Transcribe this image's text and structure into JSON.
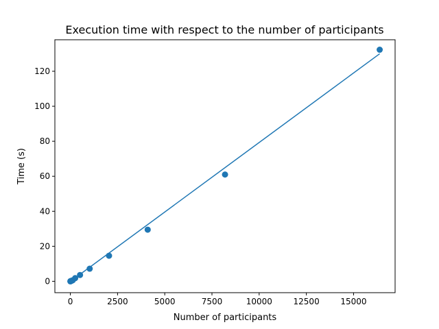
{
  "chart_data": {
    "type": "scatter",
    "title": "Execution time with respect to the number of participants",
    "xlabel": "Number of participants",
    "ylabel": "Time (s)",
    "xlim": [
      -820,
      17200
    ],
    "ylim": [
      -6.5,
      138
    ],
    "xticks": [
      0,
      2500,
      5000,
      7500,
      10000,
      12500,
      15000
    ],
    "yticks": [
      0,
      20,
      40,
      60,
      80,
      100,
      120
    ],
    "grid": false,
    "legend": "none",
    "color": "#1f77b4",
    "series": [
      {
        "kind": "points",
        "x": [
          2,
          4,
          8,
          16,
          32,
          64,
          128,
          256,
          512,
          1024,
          2048,
          4096,
          8192,
          16384
        ],
        "y": [
          0.0,
          0.0,
          0.1,
          0.1,
          0.2,
          0.3,
          0.6,
          1.8,
          3.6,
          7.2,
          14.6,
          29.5,
          61.0,
          132.3
        ]
      },
      {
        "kind": "fit-line",
        "x": [
          2,
          16384
        ],
        "y": [
          -0.1,
          130.0
        ]
      }
    ]
  }
}
